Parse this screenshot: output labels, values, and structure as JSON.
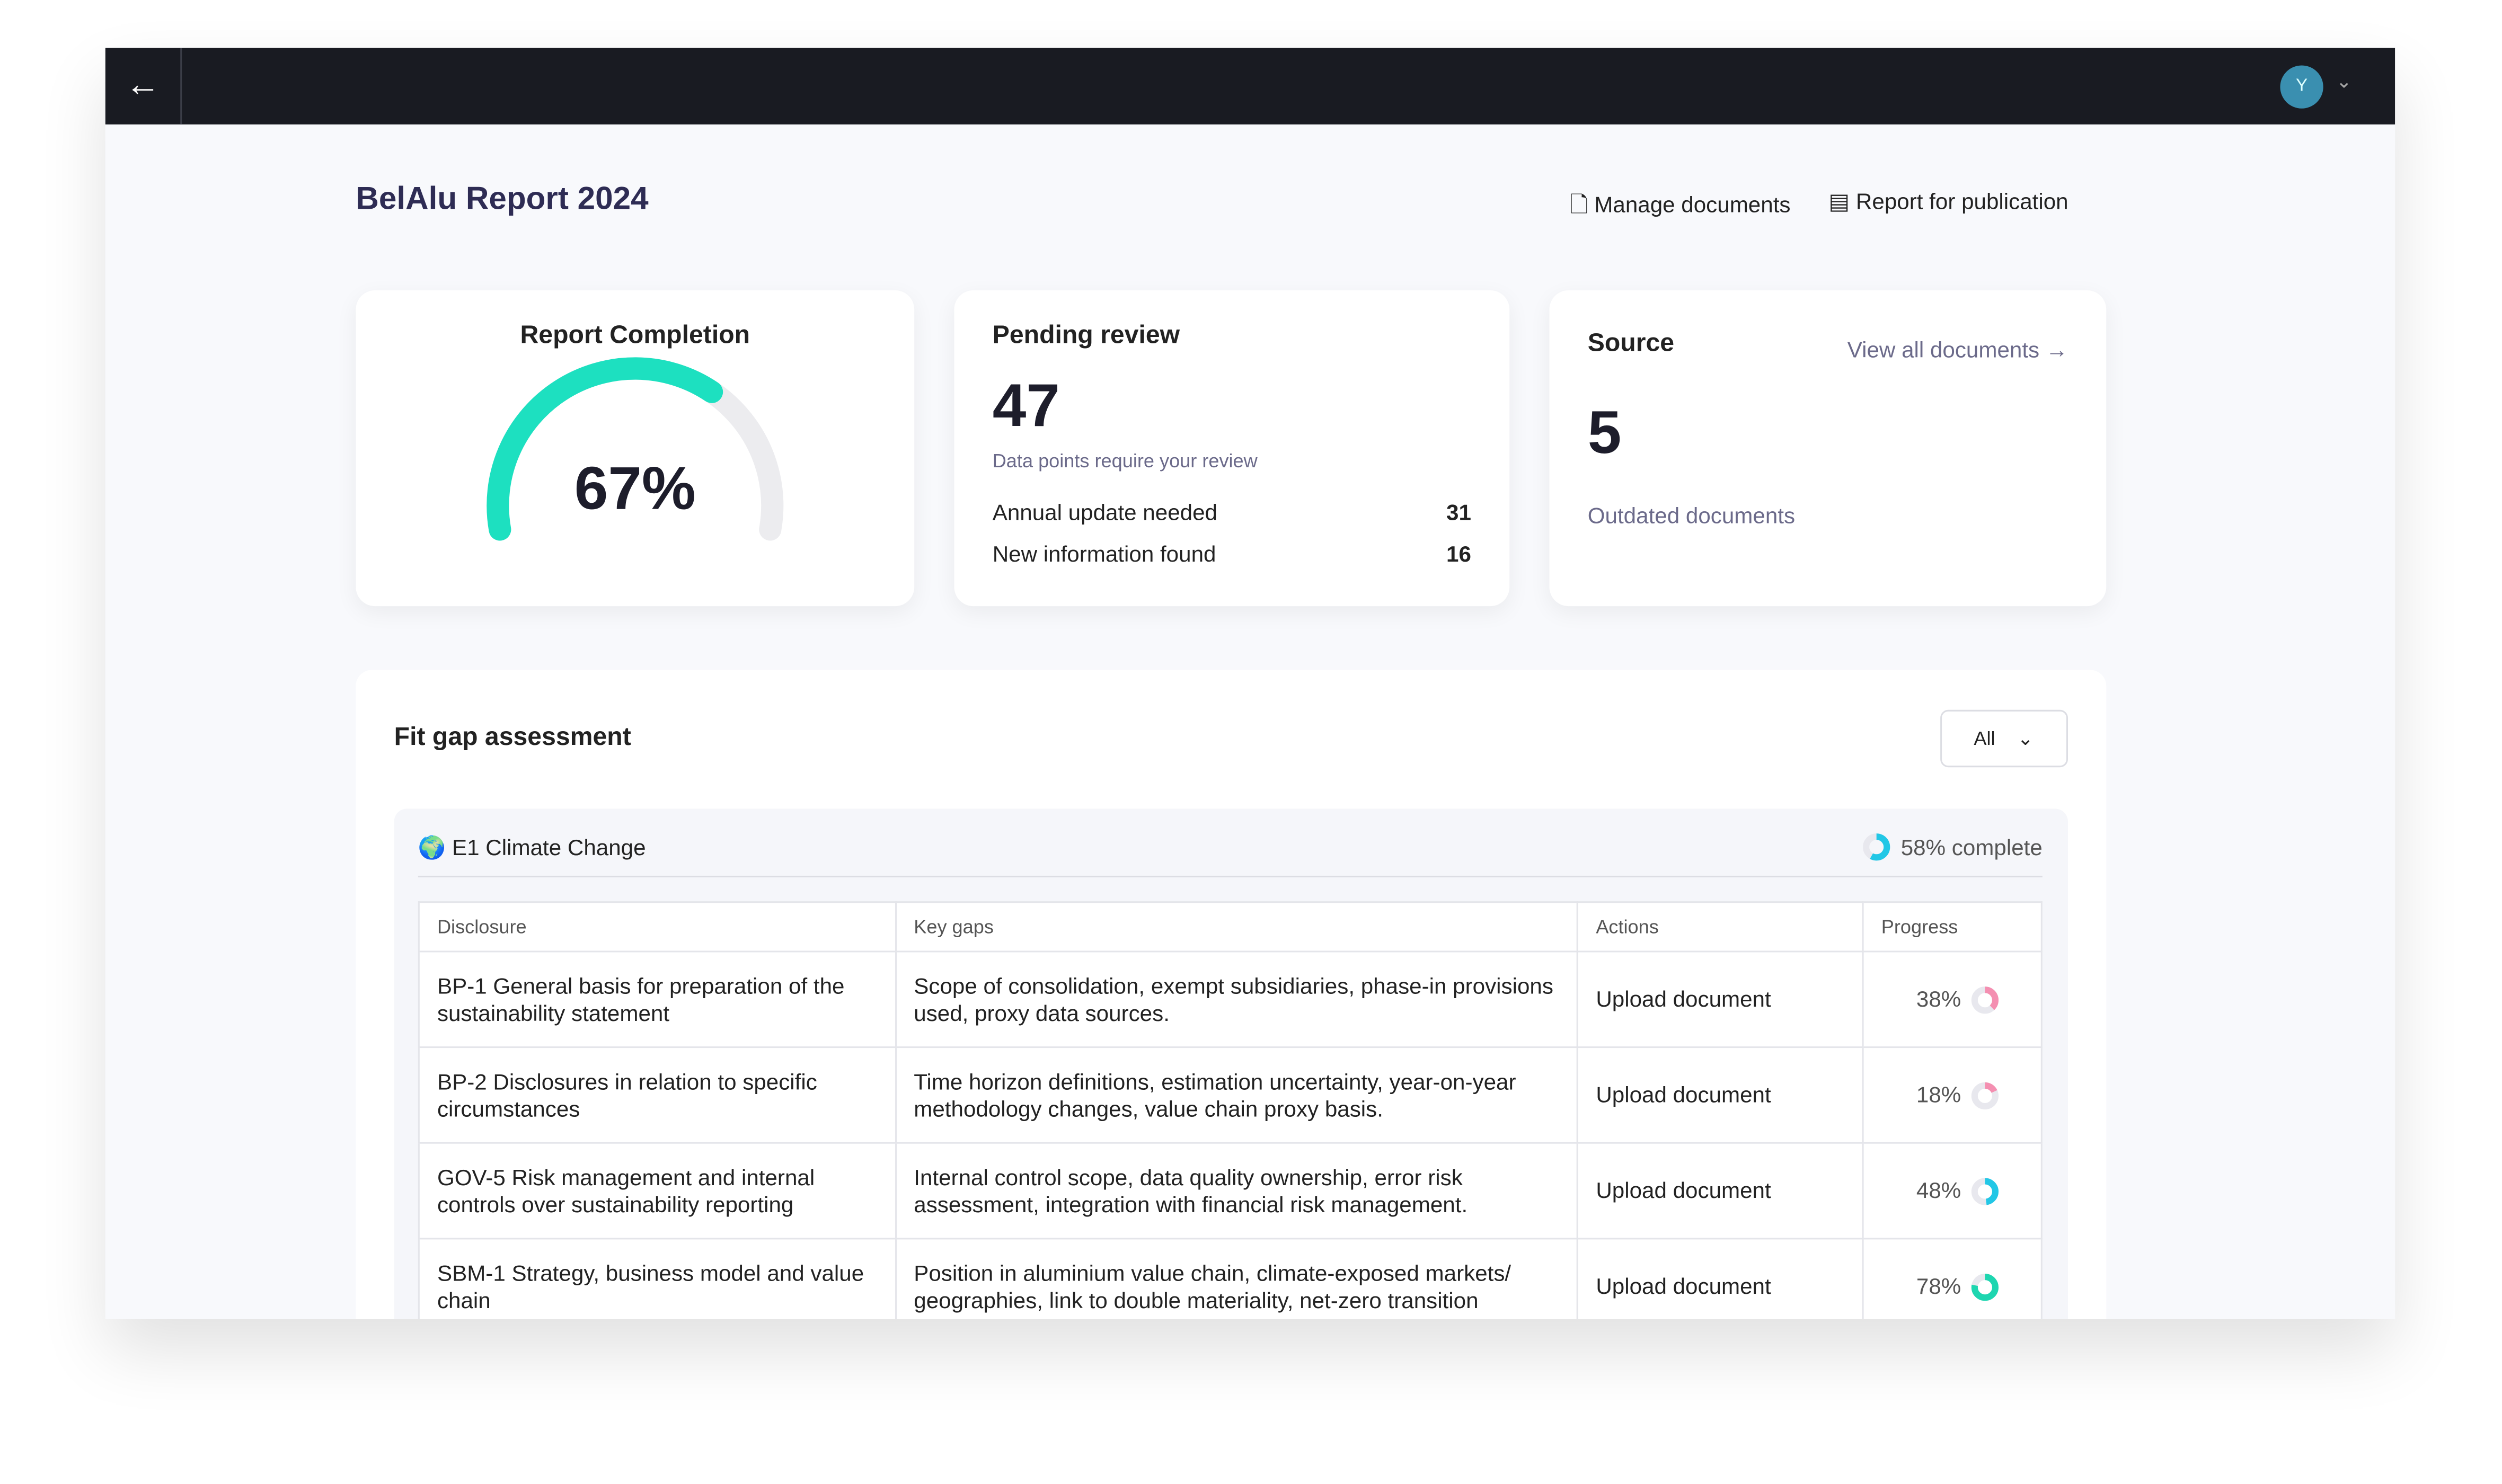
{
  "header": {
    "title": "BelAlu Report 2024",
    "actions": [
      "Manage documents",
      "Report for publication"
    ],
    "avatar": "Y"
  },
  "cards": {
    "completion": {
      "title": "Report Completion",
      "gauge": {
        "value": 67,
        "label": "67%"
      }
    },
    "pending": {
      "title": "Pending review",
      "count": "47",
      "caption": "Data points require your review",
      "items": [
        {
          "label": "Annual update needed",
          "count": "31"
        },
        {
          "label": "New information found",
          "count": "16"
        }
      ]
    },
    "source": {
      "title": "Source",
      "link": "View all documents →",
      "count": "5",
      "caption": "Outdated documents"
    }
  },
  "fit_gap": {
    "title": "Fit gap assessment",
    "filter": "All",
    "section": {
      "title": "E1 Climate Change",
      "progress": {
        "value": 58,
        "label": "58% complete",
        "color": "#22c7e6"
      }
    },
    "table": {
      "columns": [
        "Disclosure",
        "Key gaps",
        "Actions",
        "Progress"
      ],
      "rows": [
        {
          "disclosure": "BP-1 General basis for preparation of the sustainability statement",
          "gaps": "Scope of consolidation, exempt subsidiaries, phase-in provisions used, proxy data sources.",
          "action": "Upload document",
          "progress": {
            "value": 38,
            "label": "38%",
            "color": "#f48fb1"
          }
        },
        {
          "disclosure": "BP-2 Disclosures in relation to specific circumstances",
          "gaps": "Time horizon definitions, estimation uncertainty, year-on-year methodology changes, value chain proxy basis.",
          "action": "Upload document",
          "progress": {
            "value": 18,
            "label": "18%",
            "color": "#f48fb1"
          }
        },
        {
          "disclosure": "GOV-5 Risk management and internal controls over sustainability reporting",
          "gaps": "Internal control scope, data quality ownership, error risk assessment, integration with financial risk management.",
          "action": "Upload document",
          "progress": {
            "value": 48,
            "label": "48%",
            "color": "#22c7e6"
          }
        },
        {
          "disclosure": "SBM-1 Strategy, business model and value chain",
          "gaps": "Position in aluminium value chain, climate-exposed markets/ geographies, link to double materiality, net-zero transition",
          "action": "Upload document",
          "progress": {
            "value": 78,
            "label": "78%",
            "color": "#1ed6b0"
          }
        }
      ]
    }
  }
}
